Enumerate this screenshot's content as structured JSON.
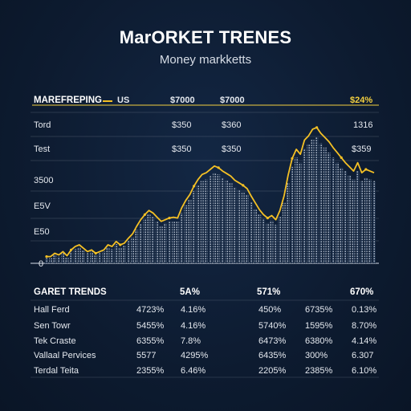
{
  "header": {
    "title": "MarORKET TRENES",
    "subtitle": "Money markketts"
  },
  "top_table": {
    "header": [
      "MAREFREPING",
      "US",
      "$7000",
      "$7000",
      "$24%"
    ],
    "rows": [
      [
        "Tord",
        "$350",
        "$360",
        "1316"
      ],
      [
        "Test",
        "$350",
        "$350",
        "$359"
      ]
    ]
  },
  "colors": {
    "background": "#0d1b30",
    "line": "#f4c025",
    "bars": "#c9d2de",
    "grid": "#7c8797",
    "accent_yellow": "#f4d03f"
  },
  "chart_data": {
    "type": "area",
    "y_tick_labels": [
      "3500",
      "E5V",
      "E50",
      "0"
    ],
    "x": [
      0,
      1,
      2,
      3,
      4,
      5,
      6,
      7,
      8,
      9,
      10,
      11,
      12,
      13,
      14,
      15,
      16,
      17,
      18,
      19,
      20,
      21,
      22,
      23,
      24,
      25,
      26,
      27,
      28,
      29,
      30,
      31,
      32,
      33,
      34,
      35,
      36,
      37,
      38,
      39,
      40,
      41,
      42,
      43,
      44,
      45,
      46,
      47,
      48,
      49,
      50,
      51,
      52,
      53,
      54,
      55,
      56,
      57,
      58,
      59,
      60,
      61,
      62,
      63,
      64,
      65,
      66,
      67,
      68,
      69,
      70,
      71,
      72,
      73,
      74,
      75,
      76,
      77,
      78,
      79,
      80
    ],
    "series": [
      {
        "values": [
          8,
          8,
          12,
          10,
          14,
          9,
          16,
          20,
          22,
          18,
          14,
          16,
          12,
          14,
          16,
          22,
          20,
          26,
          22,
          24,
          30,
          35,
          44,
          52,
          58,
          63,
          60,
          55,
          50,
          52,
          54,
          55,
          54,
          66,
          75,
          82,
          92,
          100,
          106,
          108,
          112,
          116,
          114,
          110,
          107,
          104,
          99,
          96,
          93,
          89,
          80,
          72,
          64,
          58,
          54,
          57,
          52,
          63,
          80,
          105,
          125,
          136,
          130,
          147,
          152,
          160,
          162,
          155,
          150,
          145,
          138,
          132,
          126,
          120,
          115,
          110,
          120,
          108,
          112,
          110,
          108
        ],
        "bar_values": [
          6,
          6,
          10,
          8,
          12,
          7,
          14,
          17,
          19,
          15,
          12,
          14,
          10,
          12,
          14,
          19,
          17,
          23,
          19,
          21,
          27,
          31,
          40,
          47,
          52,
          58,
          55,
          50,
          45,
          48,
          50,
          50,
          50,
          60,
          69,
          76,
          86,
          93,
          98,
          100,
          104,
          108,
          106,
          102,
          99,
          96,
          91,
          88,
          85,
          82,
          73,
          65,
          58,
          52,
          48,
          51,
          46,
          56,
          72,
          96,
          115,
          126,
          120,
          137,
          142,
          148,
          150,
          143,
          138,
          132,
          126,
          120,
          114,
          110,
          105,
          100,
          110,
          98,
          102,
          100,
          98
        ]
      }
    ],
    "ylim": [
      0,
      180
    ],
    "grid": true
  },
  "bottom_table": {
    "header": [
      "GARET TRENDS",
      "5A%",
      "571%",
      "670%"
    ],
    "rows": [
      [
        "Hall Ferd",
        "4723%",
        "4.16%",
        "450%",
        "6735%",
        "0.13%"
      ],
      [
        "Sen Towr",
        "5455%",
        "4.16%",
        "5740%",
        "1595%",
        "8.70%"
      ],
      [
        "Tek Craste",
        "6355%",
        "7.8%",
        "6473%",
        "6380%",
        "4.14%"
      ],
      [
        "Vallaal Pervices",
        "5577",
        "4295%",
        "6435%",
        "300%",
        "6.307"
      ],
      [
        "Terdal Teita",
        "2355%",
        "6.46%",
        "2205%",
        "2385%",
        "6.10%"
      ]
    ]
  }
}
